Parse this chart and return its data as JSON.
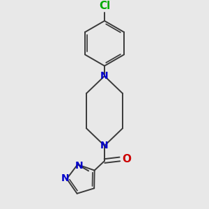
{
  "background_color": "#e8e8e8",
  "bond_color": "#3a3a3a",
  "bond_width": 1.4,
  "atom_colors": {
    "N": "#0000cc",
    "O": "#cc0000",
    "Cl": "#00aa00",
    "C": "#3a3a3a"
  },
  "font_size_atom": 10,
  "figure_size": [
    3.0,
    3.0
  ],
  "dpi": 100
}
